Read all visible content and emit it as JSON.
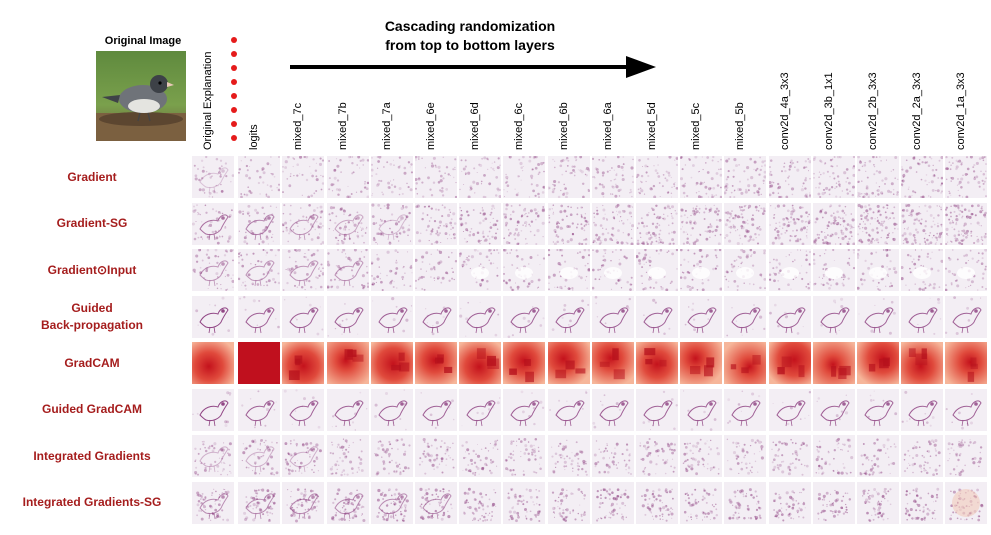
{
  "figure": {
    "original_image_title": "Original Image",
    "cascade_title": [
      "Cascading randomization",
      "from top to bottom layers"
    ]
  },
  "columns": [
    "Original Explanation",
    "logits",
    "mixed_7c",
    "mixed_7b",
    "mixed_7a",
    "mixed_6e",
    "mixed_6d",
    "mixed_6c",
    "mixed_6b",
    "mixed_6a",
    "mixed_5d",
    "mixed_5c",
    "mixed_5b",
    "conv2d_4a_3x3",
    "conv2d_3b_1x1",
    "conv2d_2b_3x3",
    "conv2d_2a_3x3",
    "conv2d_1a_3x3"
  ],
  "rows": [
    {
      "label": "Gradient",
      "lines": [
        "Gradient"
      ],
      "style": "noise"
    },
    {
      "label": "Gradient-SG",
      "lines": [
        "Gradient-SG"
      ],
      "style": "sg"
    },
    {
      "label": "Gradient⊙Input",
      "lines": [
        "Gradient⊙Input"
      ],
      "style": "input"
    },
    {
      "label": "Guided Back-propagation",
      "lines": [
        "Guided",
        "Back-propagation"
      ],
      "style": "guided"
    },
    {
      "label": "GradCAM",
      "lines": [
        "GradCAM"
      ],
      "style": "gradcam"
    },
    {
      "label": "Guided GradCAM",
      "lines": [
        "Guided GradCAM"
      ],
      "style": "guided"
    },
    {
      "label": "Integrated Gradients",
      "lines": [
        "Integrated Gradients"
      ],
      "style": "ig"
    },
    {
      "label": "Integrated Gradients-SG",
      "lines": [
        "Integrated Gradients-SG"
      ],
      "style": "igsg"
    }
  ],
  "colors": {
    "row_label": "#a51d1d",
    "heat_purple": "#8b3c7e",
    "gradcam_red": "#c4121c",
    "gradcam_pink": "#f6b69a",
    "dots": "#e51b1b"
  }
}
